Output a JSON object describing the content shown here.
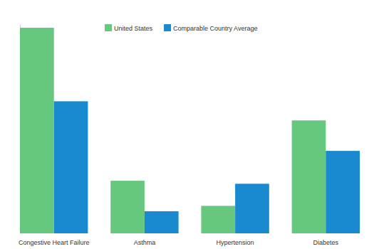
{
  "chart_data": {
    "type": "bar",
    "categories": [
      "Congestive Heart Failure",
      "Asthma",
      "Hypertension",
      "Diabetes"
    ],
    "series": [
      {
        "name": "United States",
        "color": "#66c87e",
        "values": [
          344,
          88,
          46,
          189
        ]
      },
      {
        "name": "Comparable Country Average",
        "color": "#1a8ad0",
        "values": [
          221,
          37,
          83,
          138
        ]
      }
    ],
    "ylim": [
      0,
      350
    ],
    "tick_labels": "x",
    "grid": false,
    "legend": "top"
  }
}
